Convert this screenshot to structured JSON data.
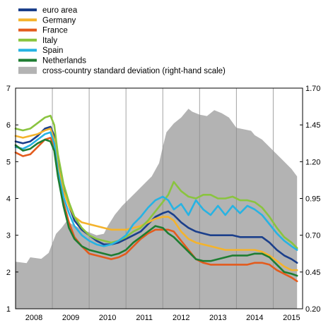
{
  "chart_data": {
    "type": "line",
    "title": "",
    "xlabel": "",
    "ylabel": "",
    "x_ticks": [
      "2008",
      "2009",
      "2010",
      "2011",
      "2012",
      "2013",
      "2014",
      "2015"
    ],
    "x_range": [
      2007.5,
      2015.3
    ],
    "ylim_left": [
      1,
      7
    ],
    "yticks_left": [
      "1",
      "2",
      "3",
      "4",
      "5",
      "6",
      "7"
    ],
    "ylim_right": [
      0.2,
      1.7
    ],
    "yticks_right": [
      "0.20",
      "0.45",
      "0.70",
      "0.95",
      "1.20",
      "1.45",
      "1.70"
    ],
    "grid": "vertical at year boundaries",
    "legend_position": "top-left, above plot",
    "series": [
      {
        "name": "euro area",
        "color": "#1b3f8b",
        "axis": "left",
        "style": "line",
        "x": [
          2007.5,
          2007.7,
          2007.9,
          2008.1,
          2008.3,
          2008.45,
          2008.55,
          2008.65,
          2008.8,
          2008.95,
          2009.1,
          2009.3,
          2009.5,
          2009.7,
          2009.9,
          2010.1,
          2010.3,
          2010.5,
          2010.7,
          2010.9,
          2011.1,
          2011.3,
          2011.5,
          2011.65,
          2011.8,
          2012.0,
          2012.2,
          2012.4,
          2012.6,
          2012.8,
          2013.0,
          2013.2,
          2013.4,
          2013.6,
          2013.8,
          2014.0,
          2014.2,
          2014.4,
          2014.6,
          2014.8,
          2015.0,
          2015.15
        ],
        "values": [
          5.55,
          5.5,
          5.55,
          5.7,
          5.9,
          5.95,
          5.7,
          5.0,
          4.3,
          3.8,
          3.4,
          3.15,
          3.0,
          2.85,
          2.75,
          2.75,
          2.8,
          2.9,
          3.0,
          3.1,
          3.3,
          3.5,
          3.6,
          3.65,
          3.55,
          3.35,
          3.2,
          3.1,
          3.05,
          3.0,
          3.0,
          3.0,
          3.0,
          2.95,
          2.95,
          2.95,
          2.95,
          2.8,
          2.6,
          2.45,
          2.35,
          2.25
        ]
      },
      {
        "name": "Germany",
        "color": "#f4b32c",
        "axis": "left",
        "style": "line",
        "x": [
          2007.5,
          2007.7,
          2007.9,
          2008.1,
          2008.3,
          2008.45,
          2008.55,
          2008.65,
          2008.8,
          2008.95,
          2009.1,
          2009.3,
          2009.5,
          2009.7,
          2009.9,
          2010.1,
          2010.3,
          2010.5,
          2010.7,
          2010.9,
          2011.1,
          2011.3,
          2011.5,
          2011.65,
          2011.8,
          2012.0,
          2012.2,
          2012.4,
          2012.6,
          2012.8,
          2013.0,
          2013.2,
          2013.4,
          2013.6,
          2013.8,
          2014.0,
          2014.2,
          2014.4,
          2014.6,
          2014.8,
          2015.0,
          2015.15
        ],
        "values": [
          5.7,
          5.65,
          5.7,
          5.75,
          5.85,
          5.9,
          5.6,
          4.9,
          4.2,
          3.8,
          3.5,
          3.35,
          3.3,
          3.25,
          3.2,
          3.15,
          3.15,
          3.15,
          3.2,
          3.25,
          3.35,
          3.45,
          3.5,
          3.5,
          3.4,
          3.1,
          2.9,
          2.8,
          2.75,
          2.7,
          2.65,
          2.6,
          2.6,
          2.6,
          2.6,
          2.6,
          2.55,
          2.45,
          2.3,
          2.15,
          2.05,
          2.05
        ]
      },
      {
        "name": "France",
        "color": "#e35b1d",
        "axis": "left",
        "style": "line",
        "x": [
          2007.5,
          2007.7,
          2007.9,
          2008.1,
          2008.3,
          2008.45,
          2008.55,
          2008.65,
          2008.8,
          2008.95,
          2009.1,
          2009.3,
          2009.5,
          2009.7,
          2009.9,
          2010.1,
          2010.3,
          2010.5,
          2010.7,
          2010.9,
          2011.1,
          2011.3,
          2011.5,
          2011.65,
          2011.8,
          2012.0,
          2012.2,
          2012.4,
          2012.6,
          2012.8,
          2013.0,
          2013.2,
          2013.4,
          2013.6,
          2013.8,
          2014.0,
          2014.2,
          2014.4,
          2014.6,
          2014.8,
          2015.0,
          2015.15
        ],
        "values": [
          5.25,
          5.15,
          5.2,
          5.4,
          5.6,
          5.65,
          5.4,
          4.7,
          3.9,
          3.35,
          2.95,
          2.7,
          2.5,
          2.45,
          2.4,
          2.35,
          2.4,
          2.5,
          2.7,
          2.9,
          3.05,
          3.15,
          3.15,
          3.15,
          3.1,
          2.85,
          2.6,
          2.35,
          2.25,
          2.2,
          2.2,
          2.2,
          2.2,
          2.2,
          2.2,
          2.25,
          2.25,
          2.2,
          2.05,
          1.95,
          1.85,
          1.75
        ]
      },
      {
        "name": "Italy",
        "color": "#8ac43f",
        "axis": "left",
        "style": "line",
        "x": [
          2007.5,
          2007.7,
          2007.9,
          2008.1,
          2008.3,
          2008.45,
          2008.55,
          2008.65,
          2008.8,
          2008.95,
          2009.1,
          2009.3,
          2009.5,
          2009.7,
          2009.9,
          2010.1,
          2010.3,
          2010.5,
          2010.7,
          2010.9,
          2011.1,
          2011.3,
          2011.5,
          2011.65,
          2011.8,
          2012.0,
          2012.2,
          2012.4,
          2012.6,
          2012.8,
          2013.0,
          2013.2,
          2013.4,
          2013.6,
          2013.8,
          2014.0,
          2014.2,
          2014.4,
          2014.6,
          2014.8,
          2015.0,
          2015.15
        ],
        "values": [
          5.9,
          5.85,
          5.9,
          6.05,
          6.2,
          6.25,
          6.0,
          5.2,
          4.4,
          3.9,
          3.5,
          3.2,
          3.0,
          2.9,
          2.85,
          2.8,
          2.85,
          2.95,
          3.1,
          3.2,
          3.4,
          3.65,
          3.9,
          4.1,
          4.45,
          4.2,
          4.05,
          4.0,
          4.1,
          4.1,
          4.0,
          4.0,
          4.05,
          3.95,
          3.95,
          3.9,
          3.75,
          3.5,
          3.2,
          2.95,
          2.8,
          2.65
        ]
      },
      {
        "name": "Spain",
        "color": "#27b3e3",
        "axis": "left",
        "style": "line",
        "x": [
          2007.5,
          2007.7,
          2007.9,
          2008.1,
          2008.3,
          2008.45,
          2008.55,
          2008.65,
          2008.8,
          2008.95,
          2009.1,
          2009.3,
          2009.5,
          2009.7,
          2009.9,
          2010.1,
          2010.3,
          2010.5,
          2010.7,
          2010.9,
          2011.1,
          2011.3,
          2011.5,
          2011.65,
          2011.8,
          2012.0,
          2012.2,
          2012.4,
          2012.6,
          2012.8,
          2013.0,
          2013.2,
          2013.4,
          2013.6,
          2013.8,
          2014.0,
          2014.2,
          2014.4,
          2014.6,
          2014.8,
          2015.0,
          2015.15
        ],
        "values": [
          5.4,
          5.35,
          5.45,
          5.6,
          5.75,
          5.8,
          5.5,
          4.75,
          4.05,
          3.6,
          3.25,
          3.0,
          2.85,
          2.75,
          2.7,
          2.75,
          2.85,
          3.0,
          3.3,
          3.5,
          3.75,
          3.95,
          4.05,
          3.95,
          3.7,
          3.85,
          3.55,
          3.95,
          3.7,
          3.55,
          3.8,
          3.55,
          3.8,
          3.6,
          3.8,
          3.7,
          3.55,
          3.3,
          3.05,
          2.85,
          2.7,
          2.6
        ]
      },
      {
        "name": "Netherlands",
        "color": "#1e7d32",
        "axis": "left",
        "style": "line",
        "x": [
          2007.5,
          2007.7,
          2007.9,
          2008.1,
          2008.3,
          2008.45,
          2008.55,
          2008.65,
          2008.8,
          2008.95,
          2009.1,
          2009.3,
          2009.5,
          2009.7,
          2009.9,
          2010.1,
          2010.3,
          2010.5,
          2010.7,
          2010.9,
          2011.1,
          2011.3,
          2011.5,
          2011.65,
          2011.8,
          2012.0,
          2012.2,
          2012.4,
          2012.6,
          2012.8,
          2013.0,
          2013.2,
          2013.4,
          2013.6,
          2013.8,
          2014.0,
          2014.2,
          2014.4,
          2014.6,
          2014.8,
          2015.0,
          2015.15
        ],
        "values": [
          5.45,
          5.3,
          5.35,
          5.5,
          5.6,
          5.55,
          5.3,
          4.6,
          3.8,
          3.2,
          2.9,
          2.7,
          2.6,
          2.55,
          2.5,
          2.45,
          2.5,
          2.6,
          2.8,
          2.95,
          3.1,
          3.25,
          3.2,
          3.05,
          2.95,
          2.75,
          2.55,
          2.35,
          2.3,
          2.3,
          2.35,
          2.4,
          2.45,
          2.45,
          2.45,
          2.5,
          2.5,
          2.4,
          2.2,
          2.0,
          1.95,
          1.9
        ]
      },
      {
        "name": "cross-country standard deviation (right-hand scale)",
        "color": "#b3b3b3",
        "axis": "right",
        "style": "area",
        "x": [
          2007.5,
          2007.8,
          2007.9,
          2008.2,
          2008.4,
          2008.6,
          2008.75,
          2008.9,
          2009.0,
          2009.15,
          2009.3,
          2009.5,
          2009.7,
          2009.9,
          2010.0,
          2010.2,
          2010.4,
          2010.6,
          2010.8,
          2011.0,
          2011.2,
          2011.4,
          2011.5,
          2011.6,
          2011.8,
          2012.0,
          2012.2,
          2012.3,
          2012.5,
          2012.7,
          2012.9,
          2013.1,
          2013.3,
          2013.5,
          2013.7,
          2013.9,
          2014.0,
          2014.2,
          2014.4,
          2014.6,
          2014.8,
          2015.0,
          2015.15
        ],
        "values": [
          0.52,
          0.51,
          0.55,
          0.54,
          0.58,
          0.71,
          0.75,
          0.8,
          0.78,
          0.76,
          0.74,
          0.72,
          0.7,
          0.71,
          0.76,
          0.84,
          0.9,
          0.95,
          1.0,
          1.05,
          1.1,
          1.19,
          1.3,
          1.4,
          1.46,
          1.5,
          1.56,
          1.54,
          1.52,
          1.51,
          1.55,
          1.53,
          1.5,
          1.43,
          1.42,
          1.41,
          1.38,
          1.35,
          1.3,
          1.25,
          1.2,
          1.15,
          1.1
        ]
      }
    ]
  }
}
